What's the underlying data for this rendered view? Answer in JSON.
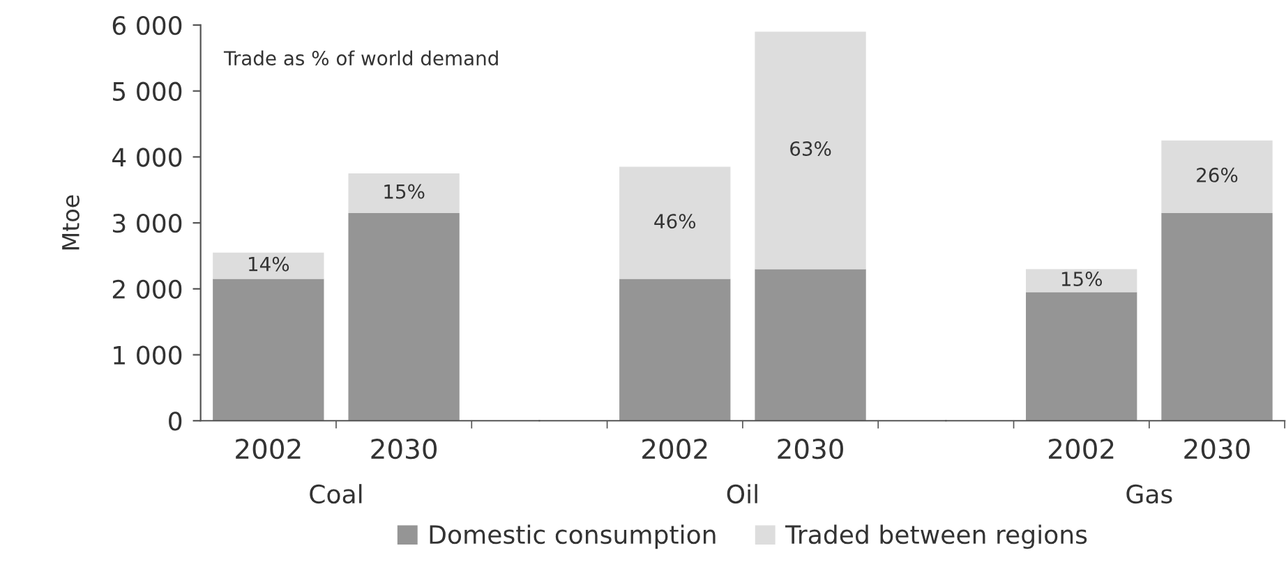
{
  "chart_data": [
    {
      "type": "bar",
      "stacked": true,
      "categories": [
        "2002",
        "2030"
      ],
      "xlabel": "Coal",
      "ylabel": "Mtoe",
      "subtitle": "Trade as % of world demand",
      "series": [
        {
          "name": "Domestic consumption",
          "color": "#959595",
          "values": [
            2150,
            3150
          ]
        },
        {
          "name": "Traded between regions",
          "color": "#dddddd",
          "values": [
            400,
            600
          ]
        }
      ],
      "annotations": [
        "14%",
        "15%"
      ],
      "ylim": [
        0,
        6000
      ],
      "yticks": [
        0,
        {
          "value": 1000,
          "label": "1 000"
        },
        {
          "value": 2000,
          "label": "2 000"
        },
        {
          "value": 3000,
          "label": "3 000"
        },
        {
          "value": 4000,
          "label": "4 000"
        },
        {
          "value": 5000,
          "label": "5 000"
        },
        {
          "value": 6000,
          "label": "6 000"
        }
      ],
      "legend": "bottom"
    },
    {
      "type": "bar",
      "stacked": true,
      "categories": [
        "2002",
        "2030"
      ],
      "xlabel": "Oil",
      "series": [
        {
          "color": "#959595",
          "values": [
            2150,
            2300
          ]
        },
        {
          "color": "#dddddd",
          "values": [
            1700,
            3600
          ]
        }
      ],
      "annotations": [
        "46%",
        "63%"
      ],
      "ylim": [
        0,
        6000
      ],
      "tick_labels": "x"
    },
    {
      "type": "bar",
      "stacked": true,
      "categories": [
        "2002",
        "2030"
      ],
      "xlabel": "Gas",
      "series": [
        {
          "color": "#959595",
          "values": [
            1950,
            3150
          ]
        },
        {
          "color": "#dddddd",
          "values": [
            350,
            1100
          ]
        }
      ],
      "annotations": [
        "15%",
        "26%"
      ],
      "ylim": [
        0,
        6000
      ],
      "tick_labels": "x"
    }
  ]
}
